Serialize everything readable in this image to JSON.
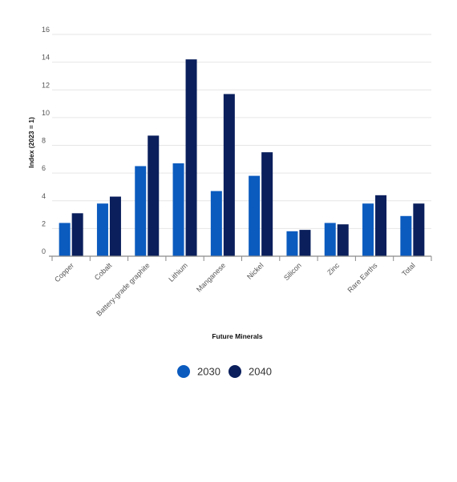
{
  "chart_data": {
    "type": "bar",
    "xlabel": "Future Minerals",
    "ylabel": "Index (2023 = 1)",
    "ylim": [
      0,
      16
    ],
    "yticks": [
      0,
      2,
      4,
      6,
      8,
      10,
      12,
      14,
      16
    ],
    "grid": true,
    "legend_position": "bottom",
    "categories": [
      "Copper",
      "Cobalt",
      "Battery-grade graphite",
      "Lithium",
      "Manganese",
      "Nickel",
      "Silicon",
      "Zinc",
      "Rare Earths",
      "Total"
    ],
    "series": [
      {
        "name": "2030",
        "color": "#0b5bbf",
        "values": [
          2.4,
          3.8,
          6.5,
          6.7,
          4.7,
          5.8,
          1.8,
          2.4,
          3.8,
          2.9
        ]
      },
      {
        "name": "2040",
        "color": "#0a1f5c",
        "values": [
          3.1,
          4.3,
          8.7,
          14.2,
          11.7,
          7.5,
          1.9,
          2.3,
          4.4,
          3.8
        ]
      }
    ]
  }
}
